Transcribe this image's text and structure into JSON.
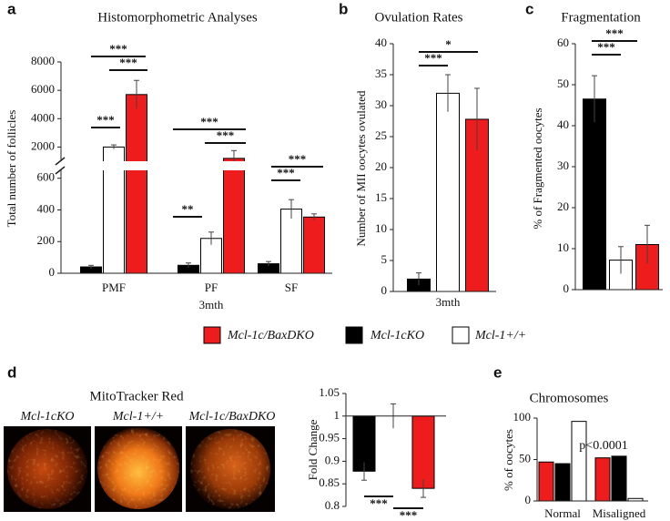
{
  "chart_data": [
    {
      "type": "bar",
      "panel": "a",
      "title": "Histomorphometric Analyses",
      "ylabel": "Total number of follicles",
      "xlabel": "3mth",
      "categories": [
        "PMF",
        "PF",
        "SF"
      ],
      "series": [
        {
          "color": "#000000",
          "values": [
            40,
            50,
            60
          ],
          "errors": [
            10,
            15,
            14
          ]
        },
        {
          "color": "#ffffff",
          "values": [
            2000,
            220,
            405
          ],
          "errors": [
            150,
            40,
            60
          ]
        },
        {
          "color": "#ee1c1c",
          "values": [
            5700,
            1200,
            355
          ],
          "errors": [
            1000,
            550,
            20
          ]
        }
      ],
      "ylim": [
        0,
        8000
      ],
      "ybreak": [
        650,
        1000
      ],
      "yticks": [
        0,
        200,
        400,
        600,
        2000,
        4000,
        6000,
        8000
      ],
      "annotations": [
        "***",
        "***",
        "***",
        "***",
        "***",
        "**",
        "***",
        "***"
      ]
    },
    {
      "type": "bar",
      "panel": "b",
      "title": "Ovulation Rates",
      "ylabel": "Number of MII oocytes ovulated",
      "categories": [
        "3mth"
      ],
      "series": [
        {
          "color": "#000000",
          "values": [
            2
          ],
          "errors": [
            1
          ]
        },
        {
          "color": "#ffffff",
          "values": [
            32
          ],
          "errors": [
            3
          ]
        },
        {
          "color": "#ee1c1c",
          "values": [
            27.8
          ],
          "errors": [
            5
          ]
        }
      ],
      "ylim": [
        0,
        40
      ],
      "yticks": [
        0,
        5,
        10,
        15,
        20,
        25,
        30,
        35,
        40
      ],
      "annotations": [
        "*",
        "***"
      ]
    },
    {
      "type": "bar",
      "panel": "c",
      "title": "Fragmentation",
      "ylabel": "% of Fragmented oocytes",
      "series": [
        {
          "color": "#000000",
          "values": [
            46.5
          ],
          "errors": [
            5.7
          ]
        },
        {
          "color": "#ffffff",
          "values": [
            7.2
          ],
          "errors": [
            3.3
          ]
        },
        {
          "color": "#ee1c1c",
          "values": [
            11
          ],
          "errors": [
            4.7
          ]
        }
      ],
      "ylim": [
        0,
        60
      ],
      "yticks": [
        0,
        10,
        20,
        30,
        40,
        50,
        60
      ],
      "annotations": [
        "***",
        "***"
      ]
    },
    {
      "type": "bar",
      "panel": "d",
      "ylabel": "Fold Change",
      "images": {
        "title": "MitoTracker Red",
        "labels": [
          "Mcl-1cKO",
          "Mcl-1+/+",
          "Mcl-1c/BaxDKO"
        ]
      },
      "series": [
        {
          "color": "#000000",
          "values": [
            0.878
          ],
          "errors": [
            0.02
          ]
        },
        {
          "color": "#ffffff",
          "values": [
            1.0
          ],
          "errors": [
            0.027
          ]
        },
        {
          "color": "#ee1c1c",
          "values": [
            0.84
          ],
          "errors": [
            0.02
          ]
        }
      ],
      "baseline": 1,
      "ylim": [
        0.8,
        1.05
      ],
      "yticks": [
        0.8,
        0.85,
        0.9,
        0.95,
        1,
        1.05
      ],
      "annotations": [
        "***",
        "***"
      ]
    },
    {
      "type": "bar",
      "panel": "e",
      "title": "Chromosomes",
      "ylabel": "% of  oocytes",
      "categories": [
        "Normal",
        "Misaligned"
      ],
      "series": [
        {
          "name": "Mcl-1c/BaxDKO",
          "color": "#ee1c1c",
          "values": [
            47,
            52
          ]
        },
        {
          "name": "Mcl-1cKO",
          "color": "#000000",
          "values": [
            45,
            54
          ]
        },
        {
          "name": "Mcl-1+/+",
          "color": "#ffffff",
          "values": [
            96,
            3
          ]
        }
      ],
      "ylim": [
        0,
        100
      ],
      "yticks": [
        0,
        50,
        100
      ],
      "annotations": [
        "p<0.0001"
      ]
    }
  ]
}
